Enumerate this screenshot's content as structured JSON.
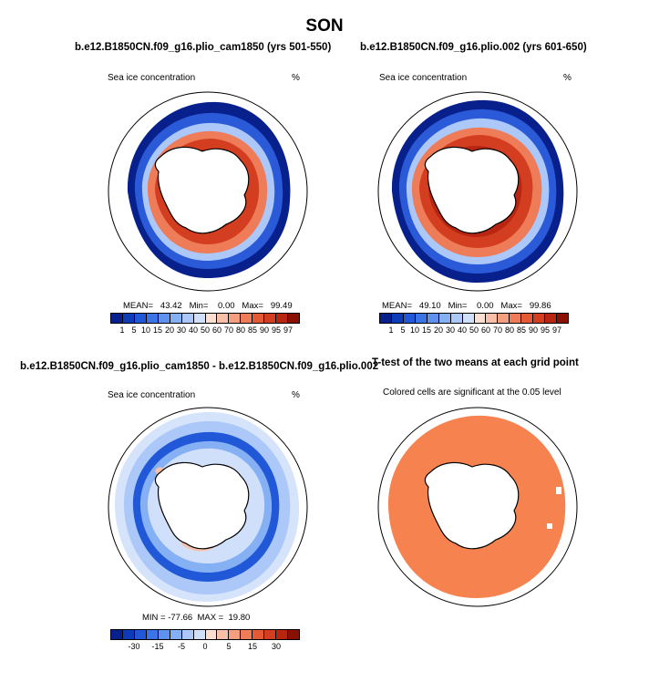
{
  "figure_title": "SON",
  "panels": {
    "p1": {
      "title": "b.e12.B1850CN.f09_g16.plio_cam1850 (yrs 501-550)",
      "left_label": "Sea ice concentration",
      "right_label": "%",
      "stats": "MEAN=   43.42   Min=    0.00   Max=   99.49"
    },
    "p2": {
      "title": "b.e12.B1850CN.f09_g16.plio.002 (yrs 601-650)",
      "left_label": "Sea ice concentration",
      "right_label": "%",
      "stats": "MEAN=   49.10   Min=    0.00   Max=   99.86"
    },
    "p3": {
      "title": "b.e12.B1850CN.f09_g16.plio_cam1850 - b.e12.B1850CN.f09_g16.plio.002",
      "left_label": "Sea ice concentration",
      "right_label": "%",
      "stats": "MIN = -77.66  MAX =  19.80"
    },
    "p4": {
      "title": "T-test of the two means at each grid point",
      "subtitle": "Colored cells are significant at the 0.05 level"
    }
  },
  "legend_abs": {
    "colors": [
      "#08208c",
      "#0c3cb8",
      "#2058d8",
      "#3b74e6",
      "#5e92ee",
      "#86b0f4",
      "#acc8f8",
      "#d0e0fb",
      "#fbe0d2",
      "#f8c0a8",
      "#f4a080",
      "#ee7c58",
      "#e45a36",
      "#d43e20",
      "#b82612",
      "#8a1004"
    ],
    "ticks": [
      "1",
      "5",
      "10",
      "15",
      "20",
      "30",
      "40",
      "50",
      "60",
      "70",
      "80",
      "85",
      "90",
      "95",
      "97"
    ]
  },
  "legend_diff": {
    "colors": [
      "#08208c",
      "#0c3cb8",
      "#2058d8",
      "#3b74e6",
      "#5e92ee",
      "#86b0f4",
      "#acc8f8",
      "#d0e0fb",
      "#fbe0d2",
      "#f8c0a8",
      "#f4a080",
      "#ee7c58",
      "#e45a36",
      "#d43e20",
      "#b82612",
      "#8a1004"
    ],
    "ticks": [
      "-30",
      "-15",
      "-5",
      "0",
      "5",
      "15",
      "30"
    ]
  }
}
